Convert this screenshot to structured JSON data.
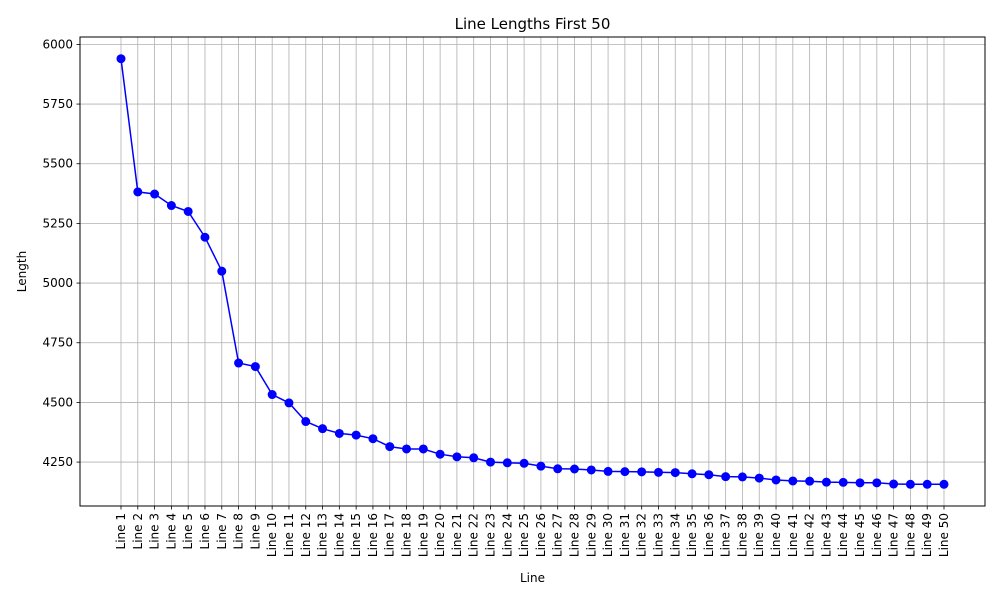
{
  "chart_data": {
    "type": "line",
    "title": "Line Lengths First 50",
    "xlabel": "Line",
    "ylabel": "Length",
    "categories": [
      "Line 1",
      "Line 2",
      "Line 3",
      "Line 4",
      "Line 5",
      "Line 6",
      "Line 7",
      "Line 8",
      "Line 9",
      "Line 10",
      "Line 11",
      "Line 12",
      "Line 13",
      "Line 14",
      "Line 15",
      "Line 16",
      "Line 17",
      "Line 18",
      "Line 19",
      "Line 20",
      "Line 21",
      "Line 22",
      "Line 23",
      "Line 24",
      "Line 25",
      "Line 26",
      "Line 27",
      "Line 28",
      "Line 29",
      "Line 30",
      "Line 31",
      "Line 32",
      "Line 33",
      "Line 34",
      "Line 35",
      "Line 36",
      "Line 37",
      "Line 38",
      "Line 39",
      "Line 40",
      "Line 41",
      "Line 42",
      "Line 43",
      "Line 44",
      "Line 45",
      "Line 46",
      "Line 47",
      "Line 48",
      "Line 49",
      "Line 50"
    ],
    "values": [
      5940,
      5382,
      5373,
      5325,
      5300,
      5192,
      5050,
      4665,
      4650,
      4533,
      4498,
      4420,
      4390,
      4370,
      4363,
      4348,
      4315,
      4305,
      4305,
      4283,
      4272,
      4268,
      4250,
      4247,
      4245,
      4233,
      4222,
      4221,
      4217,
      4211,
      4210,
      4209,
      4207,
      4206,
      4201,
      4197,
      4189,
      4188,
      4183,
      4175,
      4171,
      4170,
      4166,
      4165,
      4163,
      4163,
      4158,
      4157,
      4157,
      4157
    ],
    "yticks": [
      4250,
      4500,
      4750,
      5000,
      5250,
      5500,
      5750,
      6000
    ],
    "ylim": [
      4066,
      6031
    ],
    "grid": true,
    "line_color": "#0000ff",
    "marker_color": "#0000ff"
  }
}
